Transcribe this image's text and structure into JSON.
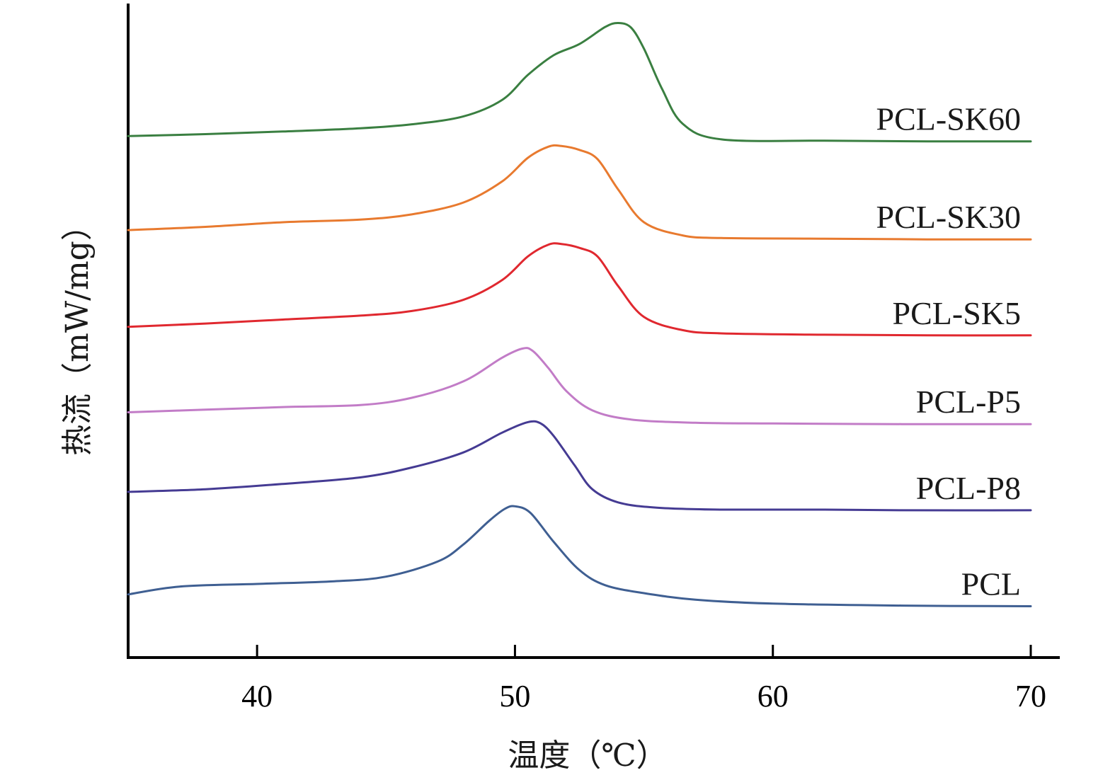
{
  "chart_data": {
    "type": "line",
    "xlabel": "温度（℃）",
    "ylabel": "热流（mW/mg）",
    "xlim": [
      35,
      70
    ],
    "xticks": [
      40,
      50,
      60,
      70
    ],
    "ylim": [
      0,
      100
    ],
    "y_ticks_shown": false,
    "grid": false,
    "legend": "labels at right end of each curve",
    "series": [
      {
        "name": "PCL",
        "color": "#3f5f92",
        "x": [
          35,
          37,
          40,
          43,
          45,
          47,
          48,
          49,
          49.6,
          50,
          50.6,
          51.5,
          52.5,
          53.5,
          55,
          57,
          60,
          65,
          70
        ],
        "y": [
          9.6,
          10.8,
          11.2,
          11.6,
          12.3,
          14.6,
          17.2,
          20.8,
          22.6,
          23.0,
          22.0,
          17.6,
          13.3,
          11.0,
          9.8,
          8.8,
          8.2,
          7.9,
          7.8
        ]
      },
      {
        "name": "PCL-P8",
        "color": "#453b93",
        "x": [
          35,
          38,
          41,
          44,
          46,
          48,
          49.5,
          50.5,
          51,
          51.5,
          52.3,
          53,
          54,
          55.5,
          58,
          62,
          65,
          70
        ],
        "y": [
          25.2,
          25.6,
          26.4,
          27.4,
          28.9,
          31.2,
          34.2,
          35.8,
          35.6,
          33.7,
          29.3,
          25.6,
          23.6,
          22.8,
          22.5,
          22.5,
          22.4,
          22.4
        ]
      },
      {
        "name": "PCL-P5",
        "color": "#c27cc7",
        "x": [
          35,
          38,
          41,
          44,
          46,
          48,
          49.5,
          50.3,
          50.7,
          51.3,
          52,
          53,
          54.5,
          57,
          60,
          65,
          70
        ],
        "y": [
          37.3,
          37.7,
          38.1,
          38.4,
          39.5,
          42.0,
          45.6,
          47.0,
          46.6,
          44.0,
          40.5,
          37.6,
          36.2,
          35.7,
          35.6,
          35.5,
          35.5
        ]
      },
      {
        "name": "PCL-SK5",
        "color": "#e0282f",
        "x": [
          35,
          38,
          41,
          44,
          46,
          48,
          49.5,
          50.5,
          51.3,
          51.8,
          52.5,
          53.2,
          54,
          55,
          56.5,
          58,
          62,
          66,
          70
        ],
        "y": [
          50.3,
          50.8,
          51.4,
          52.0,
          52.7,
          54.4,
          57.4,
          61.0,
          62.8,
          62.9,
          62.3,
          61.0,
          56.5,
          51.8,
          49.8,
          49.3,
          49.1,
          49.0,
          49.0
        ]
      },
      {
        "name": "PCL-SK30",
        "color": "#e87a2f",
        "x": [
          35,
          38,
          41,
          44,
          46,
          48,
          49.5,
          50.5,
          51.3,
          51.8,
          52.5,
          53.2,
          54,
          55,
          56.5,
          58,
          62,
          66,
          70
        ],
        "y": [
          65.0,
          65.5,
          66.2,
          66.6,
          67.4,
          69.2,
          72.4,
          76.0,
          77.7,
          77.8,
          77.2,
          75.8,
          71.2,
          66.2,
          64.2,
          63.8,
          63.7,
          63.6,
          63.6
        ]
      },
      {
        "name": "PCL-SK60",
        "color": "#3a7f41",
        "x": [
          35,
          38,
          41,
          44,
          46,
          48,
          49.5,
          50.5,
          51.5,
          52.5,
          53.5,
          54,
          54.5,
          55,
          55.7,
          56.5,
          58,
          62,
          66,
          70
        ],
        "y": [
          79.3,
          79.6,
          80.0,
          80.5,
          81.1,
          82.3,
          84.8,
          88.6,
          91.6,
          93.3,
          95.9,
          96.5,
          95.8,
          92.6,
          86.5,
          81.2,
          78.8,
          78.6,
          78.5,
          78.5
        ]
      }
    ]
  }
}
